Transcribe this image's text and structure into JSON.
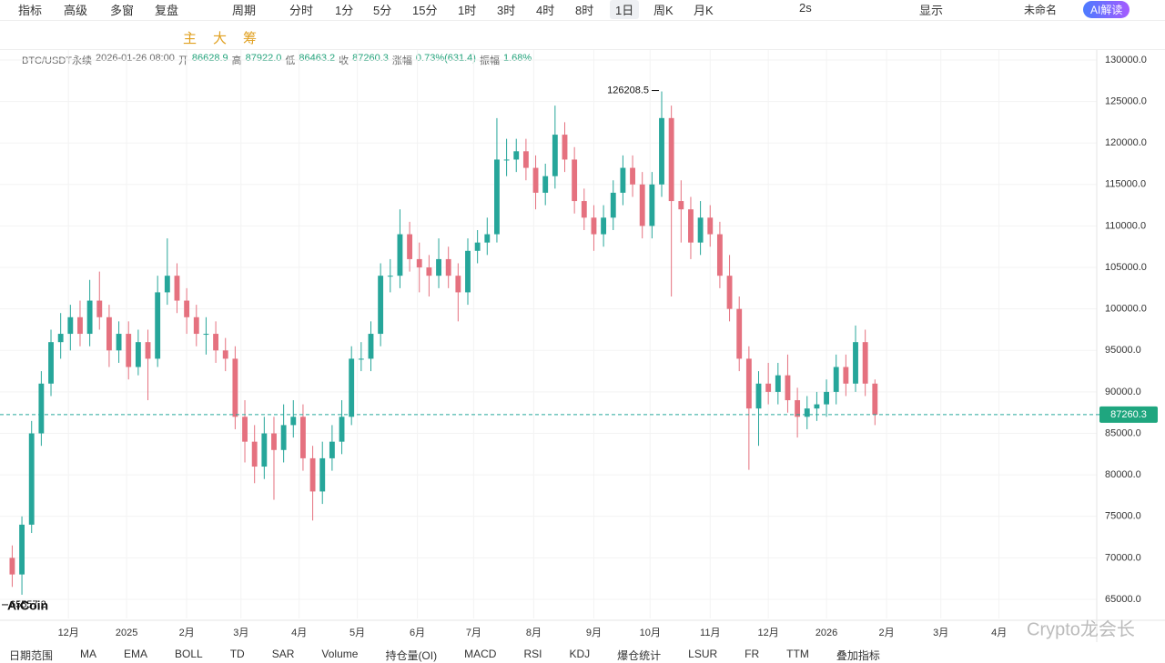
{
  "toolbar": {
    "items": [
      "指标",
      "高级",
      "多窗",
      "复盘",
      "周期",
      "分时",
      "1分",
      "5分",
      "15分",
      "1时",
      "3时",
      "4时",
      "8时",
      "1日",
      "周K",
      "月K",
      "2s",
      "显示",
      "未命名",
      "AI解读"
    ]
  },
  "tools": {
    "items": [
      "主",
      "大",
      "筹"
    ]
  },
  "info": {
    "symbol": "BTC/USDT永续",
    "time": "2026-01-26 08:00",
    "fields": [
      {
        "label": "开",
        "value": "86628.9"
      },
      {
        "label": "高",
        "value": "87922.0"
      },
      {
        "label": "低",
        "value": "86463.2"
      },
      {
        "label": "收",
        "value": "87260.3"
      },
      {
        "label": "涨幅",
        "value": "0.73%(631.4)"
      },
      {
        "label": "振幅",
        "value": "1.68%"
      }
    ]
  },
  "logo": "AiCoin",
  "watermark": "Crypto龙会长",
  "bottom_bar": {
    "items": [
      "日期范围",
      "MA",
      "EMA",
      "BOLL",
      "TD",
      "SAR",
      "Volume",
      "持仓量(OI)",
      "MACD",
      "RSI",
      "KDJ",
      "爆仓统计",
      "LSUR",
      "FR",
      "TTM",
      "叠加指标"
    ]
  },
  "chart_data": {
    "type": "candlestick",
    "up_color": "#26a69a",
    "down_color": "#e5717f",
    "grid": true,
    "last_price": 87260.3,
    "x": [
      4,
      9,
      14,
      19,
      24,
      29,
      34,
      39,
      44,
      49,
      54,
      59,
      64,
      69,
      74,
      79,
      84,
      89,
      94,
      99,
      104,
      109,
      114,
      119,
      124,
      129,
      134,
      139,
      144,
      149,
      154,
      159,
      164,
      169,
      174,
      179,
      184,
      189,
      194,
      199,
      204,
      209,
      214,
      219,
      224,
      229,
      234,
      239,
      244,
      249,
      254,
      259,
      264,
      269,
      274,
      279,
      284,
      289,
      294,
      299,
      304,
      309,
      314,
      319,
      324,
      329,
      334,
      339,
      344,
      349,
      354,
      359,
      364,
      369,
      374,
      379,
      384,
      389,
      394,
      399,
      404,
      409,
      414,
      419,
      424,
      429,
      434,
      439,
      444,
      449
    ],
    "candles": [
      [
        70000,
        71500,
        66500,
        68000
      ],
      [
        68000,
        75000,
        65557.2,
        74000
      ],
      [
        74000,
        86500,
        73000,
        85000
      ],
      [
        85000,
        92500,
        83500,
        91000
      ],
      [
        91000,
        97500,
        89500,
        96000
      ],
      [
        96000,
        99500,
        94000,
        97000
      ],
      [
        97000,
        100500,
        95000,
        99000
      ],
      [
        99000,
        101000,
        95500,
        97000
      ],
      [
        97000,
        103500,
        95500,
        101000
      ],
      [
        101000,
        104500,
        97500,
        99000
      ],
      [
        99000,
        100500,
        93000,
        95000
      ],
      [
        95000,
        98500,
        93500,
        97000
      ],
      [
        97000,
        98500,
        91500,
        93000
      ],
      [
        93000,
        97500,
        92000,
        96000
      ],
      [
        96000,
        97500,
        89000,
        94000
      ],
      [
        94000,
        104000,
        93000,
        102000
      ],
      [
        102000,
        108500,
        100500,
        104000
      ],
      [
        104000,
        105500,
        99500,
        101000
      ],
      [
        101000,
        102500,
        97000,
        99000
      ],
      [
        99000,
        100500,
        95500,
        97000
      ],
      [
        97000,
        99000,
        94500,
        97000
      ],
      [
        97000,
        98500,
        93500,
        95000
      ],
      [
        95000,
        96500,
        92500,
        94000
      ],
      [
        94000,
        95500,
        85500,
        87000
      ],
      [
        87000,
        89000,
        81500,
        84000
      ],
      [
        84000,
        86000,
        79000,
        81000
      ],
      [
        81000,
        87000,
        79500,
        85000
      ],
      [
        85000,
        87000,
        77000,
        83000
      ],
      [
        83000,
        88500,
        81500,
        86000
      ],
      [
        86000,
        89000,
        84500,
        87000
      ],
      [
        87000,
        88500,
        80500,
        82000
      ],
      [
        82000,
        83500,
        74500,
        78000
      ],
      [
        78000,
        84000,
        76500,
        82000
      ],
      [
        82000,
        86000,
        80500,
        84000
      ],
      [
        84000,
        89000,
        82500,
        87000
      ],
      [
        87000,
        95500,
        86000,
        94000
      ],
      [
        94000,
        96000,
        92500,
        94000
      ],
      [
        94000,
        98500,
        92500,
        97000
      ],
      [
        97000,
        105500,
        95500,
        104000
      ],
      [
        104000,
        106000,
        102000,
        104000
      ],
      [
        104000,
        112000,
        102500,
        109000
      ],
      [
        109000,
        110500,
        104500,
        106000
      ],
      [
        106000,
        108000,
        102000,
        105000
      ],
      [
        105000,
        106500,
        101500,
        104000
      ],
      [
        104000,
        108500,
        102500,
        106000
      ],
      [
        106000,
        107500,
        102500,
        104000
      ],
      [
        104000,
        105500,
        98500,
        102000
      ],
      [
        102000,
        108500,
        100500,
        107000
      ],
      [
        107000,
        109500,
        105500,
        108000
      ],
      [
        108000,
        111000,
        106500,
        109000
      ],
      [
        109000,
        123000,
        108000,
        118000
      ],
      [
        118000,
        120500,
        116000,
        118000
      ],
      [
        118000,
        120500,
        116500,
        119000
      ],
      [
        119000,
        120500,
        115500,
        117000
      ],
      [
        117000,
        118500,
        112000,
        114000
      ],
      [
        114000,
        117500,
        112500,
        116000
      ],
      [
        116000,
        124500,
        114500,
        121000
      ],
      [
        121000,
        122500,
        116500,
        118000
      ],
      [
        118000,
        119500,
        111500,
        113000
      ],
      [
        113000,
        114500,
        109500,
        111000
      ],
      [
        111000,
        112500,
        107000,
        109000
      ],
      [
        109000,
        112500,
        107500,
        111000
      ],
      [
        111000,
        115500,
        109500,
        114000
      ],
      [
        114000,
        118500,
        112500,
        117000
      ],
      [
        117000,
        118500,
        113500,
        115000
      ],
      [
        115000,
        116500,
        108500,
        110000
      ],
      [
        110000,
        116500,
        108500,
        115000
      ],
      [
        115000,
        126208.5,
        113500,
        123000
      ],
      [
        123000,
        124500,
        101500,
        113000
      ],
      [
        113000,
        115500,
        108000,
        112000
      ],
      [
        112000,
        113500,
        106000,
        108000
      ],
      [
        108000,
        113000,
        106500,
        111000
      ],
      [
        111000,
        112500,
        107500,
        109000
      ],
      [
        109000,
        110500,
        102500,
        104000
      ],
      [
        104000,
        106500,
        98500,
        100000
      ],
      [
        100000,
        101500,
        92500,
        94000
      ],
      [
        94000,
        95500,
        80600,
        88000
      ],
      [
        88000,
        92500,
        83500,
        91000
      ],
      [
        91000,
        93500,
        88500,
        90000
      ],
      [
        90000,
        93500,
        88500,
        92000
      ],
      [
        92000,
        94500,
        87500,
        89000
      ],
      [
        89000,
        90500,
        84500,
        87000
      ],
      [
        87000,
        89500,
        85500,
        88000
      ],
      [
        88000,
        90000,
        86500,
        88500
      ],
      [
        88500,
        91500,
        87000,
        90000
      ],
      [
        90000,
        94500,
        88500,
        93000
      ],
      [
        93000,
        94500,
        89500,
        91000
      ],
      [
        91000,
        98000,
        90000,
        96000
      ],
      [
        96000,
        97500,
        89500,
        91000
      ],
      [
        91000,
        91500,
        86000,
        87260.3
      ]
    ],
    "xlim": [
      -2.3,
      563.4
    ],
    "ylim": [
      62700,
      131200
    ],
    "xticks": [
      {
        "value": 33,
        "label": "12月"
      },
      {
        "value": 63,
        "label": "2025"
      },
      {
        "value": 94,
        "label": "2月"
      },
      {
        "value": 122,
        "label": "3月"
      },
      {
        "value": 152,
        "label": "4月"
      },
      {
        "value": 182,
        "label": "5月"
      },
      {
        "value": 213,
        "label": "6月"
      },
      {
        "value": 242,
        "label": "7月"
      },
      {
        "value": 273,
        "label": "8月"
      },
      {
        "value": 304,
        "label": "9月"
      },
      {
        "value": 333,
        "label": "10月"
      },
      {
        "value": 364,
        "label": "11月"
      },
      {
        "value": 394,
        "label": "12月"
      },
      {
        "value": 424,
        "label": "2026"
      },
      {
        "value": 455,
        "label": "2月"
      },
      {
        "value": 483,
        "label": "3月"
      },
      {
        "value": 513,
        "label": "4月"
      }
    ],
    "yticks": [
      {
        "value": 65000,
        "label": "65000.0"
      },
      {
        "value": 70000,
        "label": "70000.0"
      },
      {
        "value": 75000,
        "label": "75000.0"
      },
      {
        "value": 80000,
        "label": "80000.0"
      },
      {
        "value": 85000,
        "label": "85000.0"
      },
      {
        "value": 90000,
        "label": "90000.0"
      },
      {
        "value": 95000,
        "label": "95000.0"
      },
      {
        "value": 100000,
        "label": "100000.0"
      },
      {
        "value": 105000,
        "label": "105000.0"
      },
      {
        "value": 110000,
        "label": "110000.0"
      },
      {
        "value": 115000,
        "label": "115000.0"
      },
      {
        "value": 120000,
        "label": "120000.0"
      },
      {
        "value": 125000,
        "label": "125000.0"
      },
      {
        "value": 130000,
        "label": "130000.0"
      }
    ]
  }
}
